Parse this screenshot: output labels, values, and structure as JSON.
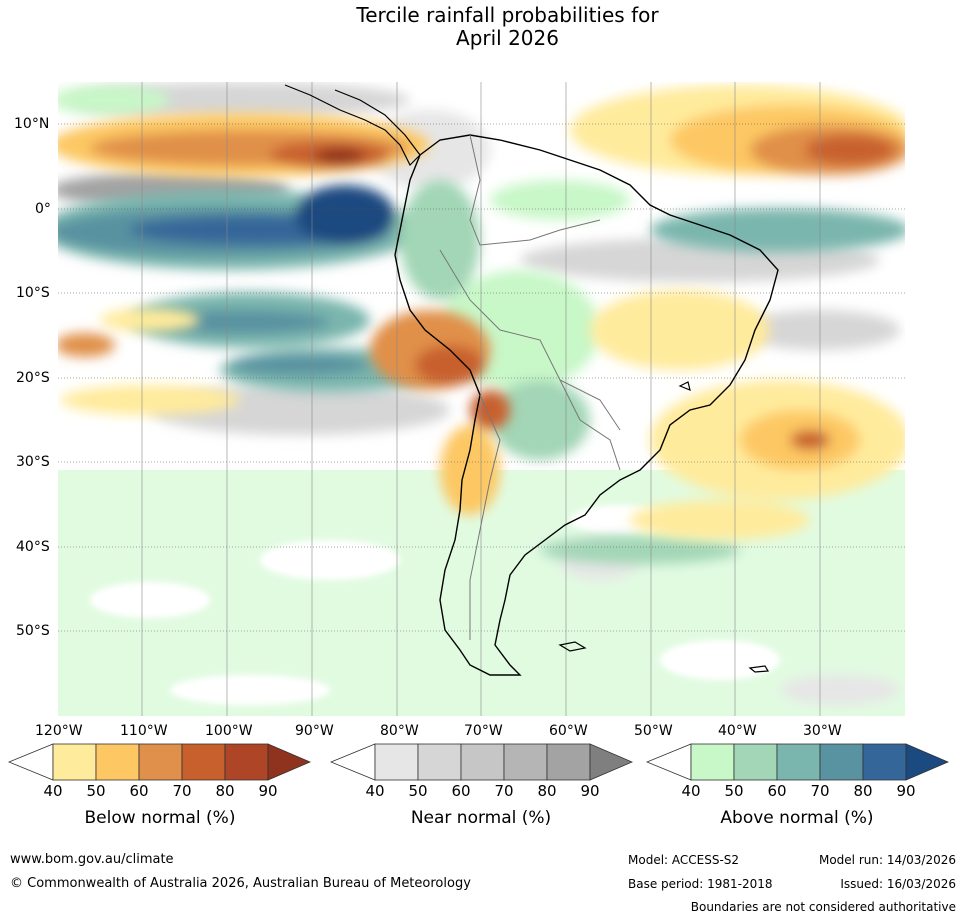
{
  "title": {
    "line1": "Tercile rainfall probabilities for",
    "line2": "April 2026"
  },
  "map": {
    "lat_labels": [
      "10°N",
      "0°",
      "10°S",
      "20°S",
      "30°S",
      "40°S",
      "50°S"
    ],
    "lon_labels": [
      "120°W",
      "110°W",
      "100°W",
      "90°W",
      "80°W",
      "70°W",
      "60°W",
      "50°W",
      "40°W",
      "30°W"
    ]
  },
  "colorbars": [
    {
      "label": "Below normal (%)",
      "ticks": [
        "40",
        "50",
        "60",
        "70",
        "80",
        "90"
      ],
      "colors": [
        "#ffffff",
        "#ffeb9c",
        "#fdc863",
        "#e0904a",
        "#c8602e",
        "#ad4526",
        "#8f321e"
      ]
    },
    {
      "label": "Near normal (%)",
      "ticks": [
        "40",
        "50",
        "60",
        "70",
        "80",
        "90"
      ],
      "colors": [
        "#ffffff",
        "#e6e6e6",
        "#d6d6d6",
        "#c6c6c6",
        "#b5b5b5",
        "#a3a3a3",
        "#7f7f7f"
      ]
    },
    {
      "label": "Above normal (%)",
      "ticks": [
        "40",
        "50",
        "60",
        "70",
        "80",
        "90"
      ],
      "colors": [
        "#ffffff",
        "#c8f7c8",
        "#a2d6b6",
        "#7ab6ad",
        "#5992a0",
        "#346699",
        "#1a4a80"
      ]
    }
  ],
  "footer": {
    "website": "www.bom.gov.au/climate",
    "copyright": "© Commonwealth of Australia 2026, Australian Bureau of Meteorology",
    "model": "Model: ACCESS-S2",
    "base_period": "Base period: 1981-2018",
    "model_run": "Model run: 14/03/2026",
    "issued": "Issued: 16/03/2026",
    "disclaimer": "Boundaries are not considered authoritative"
  }
}
